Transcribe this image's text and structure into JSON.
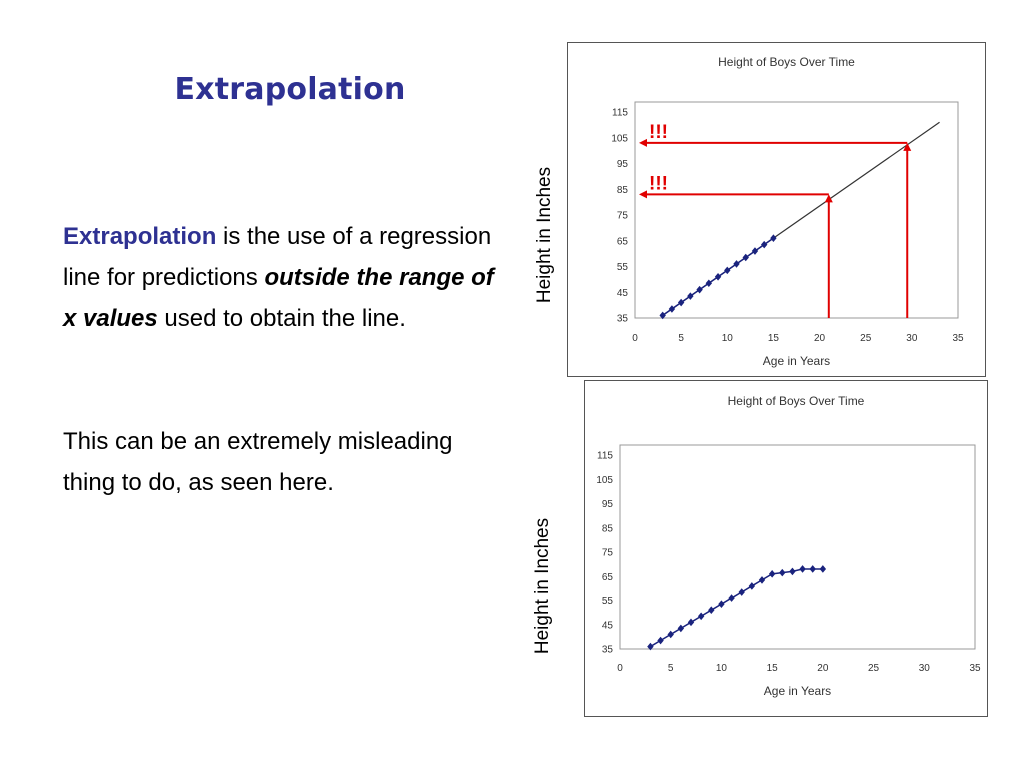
{
  "slide": {
    "title": "Extrapolation",
    "definition": {
      "term": "Extrapolation",
      "text1": " is the use of a regression line for predictions ",
      "emphasis": "outside the range of x values",
      "text2": " used to obtain the line."
    },
    "note": "This can be an extremely misleading thing to do, as seen here.",
    "y_axis_label_top": "Height in Inches",
    "y_axis_label_bottom": "Height in Inches"
  },
  "colors": {
    "title": "#2e3192",
    "points": "#1a237e",
    "arrow": "#e00000",
    "line": "#333333"
  },
  "chart_data": [
    {
      "type": "scatter",
      "title": "Height of Boys Over Time",
      "xlabel": "Age in Years",
      "ylabel": "",
      "xlim": [
        0,
        35
      ],
      "ylim": [
        35,
        115
      ],
      "xticks": [
        0,
        5,
        10,
        15,
        20,
        25,
        30,
        35
      ],
      "yticks": [
        35,
        45,
        55,
        65,
        75,
        85,
        95,
        105,
        115
      ],
      "series": [
        {
          "x": [
            3,
            4,
            5,
            6,
            7,
            8,
            9,
            10,
            11,
            12,
            13,
            14,
            15
          ],
          "y": [
            36,
            38.5,
            41,
            43.5,
            46,
            48.5,
            51,
            53.5,
            56,
            58.5,
            61,
            63.5,
            66
          ]
        }
      ],
      "trendline": {
        "x": [
          3,
          33
        ],
        "y": [
          36,
          111
        ]
      },
      "annotations": [
        {
          "text": "!!!",
          "x": 21,
          "y": 83
        },
        {
          "text": "!!!",
          "x": 29.5,
          "y": 103
        }
      ]
    },
    {
      "type": "line",
      "title": "Height of Boys Over Time",
      "xlabel": "Age in Years",
      "ylabel": "",
      "xlim": [
        0,
        35
      ],
      "ylim": [
        35,
        115
      ],
      "xticks": [
        0,
        5,
        10,
        15,
        20,
        25,
        30,
        35
      ],
      "yticks": [
        35,
        45,
        55,
        65,
        75,
        85,
        95,
        105,
        115
      ],
      "series": [
        {
          "x": [
            3,
            4,
            5,
            6,
            7,
            8,
            9,
            10,
            11,
            12,
            13,
            14,
            15,
            16,
            17,
            18,
            19,
            20
          ],
          "y": [
            36,
            38.5,
            41,
            43.5,
            46,
            48.5,
            51,
            53.5,
            56,
            58.5,
            61,
            63.5,
            66,
            66.5,
            67,
            68,
            68,
            68
          ]
        }
      ]
    }
  ]
}
